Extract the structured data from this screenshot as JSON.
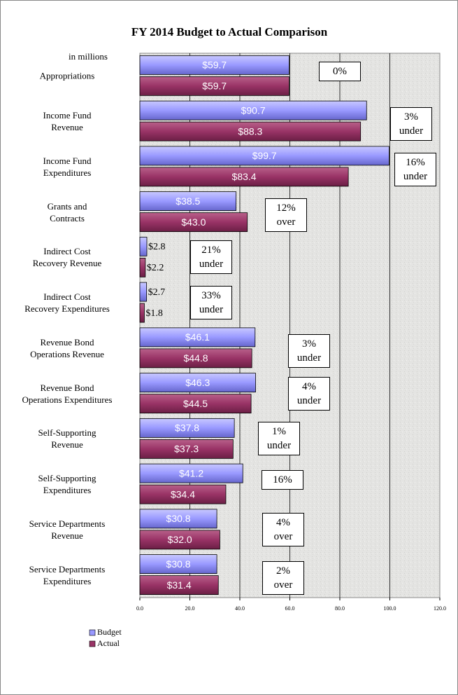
{
  "chart_data": {
    "type": "bar",
    "orientation": "horizontal",
    "title": "FY 2014 Budget to Actual Comparison",
    "unit_label": "in millions",
    "categories": [
      "Appropriations",
      "Income Fund\nRevenue",
      "Income Fund\nExpenditures",
      "Grants and\nContracts",
      "Indirect Cost\nRecovery Revenue",
      "Indirect Cost\nRecovery Expenditures",
      "Revenue Bond\nOperations Revenue",
      "Revenue Bond\nOperations Expenditures",
      "Self-Supporting\nRevenue",
      "Self-Supporting\nExpenditures",
      "Service Departments\nRevenue",
      "Service Departments\nExpenditures"
    ],
    "series": [
      {
        "name": "Budget",
        "color": "#9999ff",
        "values": [
          59.7,
          90.7,
          99.7,
          38.5,
          2.8,
          2.7,
          46.1,
          46.3,
          37.8,
          41.2,
          30.8,
          30.8
        ],
        "value_labels": [
          "$59.7",
          "$90.7",
          "$99.7",
          "$38.5",
          "$2.8",
          "$2.7",
          "$46.1",
          "$46.3",
          "$37.8",
          "$41.2",
          "$30.8",
          "$30.8"
        ]
      },
      {
        "name": "Actual",
        "color": "#993366",
        "values": [
          59.7,
          88.3,
          83.4,
          43.0,
          2.2,
          1.8,
          44.8,
          44.5,
          37.3,
          34.4,
          32.0,
          31.4
        ],
        "value_labels": [
          "$59.7",
          "$88.3",
          "$83.4",
          "$43.0",
          "$2.2",
          "$1.8",
          "$44.8",
          "$44.5",
          "$37.3",
          "$34.4",
          "$32.0",
          "$31.4"
        ]
      }
    ],
    "annotations": [
      "0%",
      "3%\nunder",
      "16%\nunder",
      "12%\nover",
      "21%\nunder",
      "33%\nunder",
      "3%\nunder",
      "4%\nunder",
      "1%\nunder",
      "16%",
      "4%\nover",
      "2%\nover"
    ],
    "xlim": [
      0,
      120
    ],
    "xticks": [
      {
        "value": 0,
        "label": "0.0"
      },
      {
        "value": 20,
        "label": "20.0"
      },
      {
        "value": 40,
        "label": "40.0"
      },
      {
        "value": 60,
        "label": "60.0"
      },
      {
        "value": 80,
        "label": "80.0"
      },
      {
        "value": 100,
        "label": "100.0"
      },
      {
        "value": 120,
        "label": "120.0"
      }
    ],
    "grid": true,
    "legend": "bottom-left"
  }
}
